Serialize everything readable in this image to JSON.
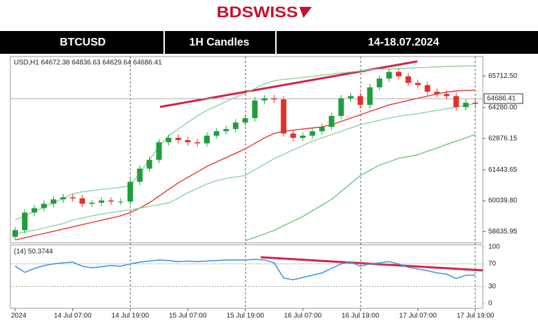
{
  "header": {
    "logo": "BDSWISS",
    "symbol": "BTCUSD",
    "timeframe": "1H Candles",
    "dates": "14-18.07.2024"
  },
  "chart_data": [
    {
      "type": "candlestick",
      "title": "USD,H1 64672.38 64836.63 64629.64 64686.41",
      "categories": [
        "2024",
        null,
        null,
        null,
        null,
        null,
        "14 Jul 07:00",
        null,
        null,
        null,
        null,
        null,
        "14 Jul 19:00",
        null,
        null,
        null,
        null,
        null,
        "15 Jul 07:00",
        null,
        null,
        null,
        null,
        null,
        "15 Jul 19:00",
        null,
        null,
        null,
        null,
        null,
        "16 Jul 07:00",
        null,
        null,
        null,
        null,
        null,
        "16 Jul 19:00",
        null,
        null,
        null,
        null,
        null,
        "17 Jul 07:00",
        null,
        null,
        null,
        null,
        null,
        "17 Jul 19:00"
      ],
      "open": [
        58400,
        58700,
        59500,
        59700,
        59900,
        60100,
        60200,
        60150,
        59900,
        59950,
        60050,
        60000,
        60000,
        60900,
        61500,
        61900,
        62700,
        62900,
        62800,
        62700,
        62650,
        63000,
        63200,
        63300,
        63600,
        63800,
        64600,
        64700,
        64650,
        63100,
        62900,
        63000,
        63200,
        63400,
        63900,
        64700,
        64800,
        64400,
        65200,
        65600,
        65900,
        65700,
        65400,
        65300,
        65000,
        64900,
        64800,
        64300,
        64500
      ],
      "high": [
        58850,
        59650,
        59850,
        60050,
        60250,
        60350,
        60350,
        60300,
        60050,
        60200,
        60200,
        60150,
        61050,
        61650,
        62050,
        62850,
        63050,
        63050,
        62950,
        62850,
        63150,
        63350,
        63450,
        63750,
        63950,
        64750,
        64850,
        64850,
        64800,
        63250,
        63150,
        63350,
        63550,
        64050,
        64850,
        64950,
        64950,
        65350,
        65750,
        66050,
        66050,
        65850,
        65550,
        65450,
        65150,
        65050,
        64950,
        64650,
        64650
      ],
      "low": [
        58250,
        58550,
        59350,
        59550,
        59750,
        59950,
        60000,
        59750,
        59750,
        59800,
        59850,
        59850,
        59850,
        60750,
        61350,
        61750,
        62550,
        62650,
        62550,
        62500,
        62500,
        62850,
        63050,
        63150,
        63450,
        63650,
        64450,
        64500,
        62950,
        62750,
        62750,
        62850,
        63050,
        63250,
        63750,
        64550,
        64250,
        64250,
        65050,
        65450,
        65550,
        65250,
        65150,
        64850,
        64750,
        64650,
        64150,
        64150,
        64300
      ],
      "close": [
        58700,
        59500,
        59700,
        59900,
        60100,
        60200,
        60150,
        59900,
        59950,
        60050,
        60000,
        60000,
        60900,
        61500,
        61900,
        62700,
        62900,
        62800,
        62700,
        62650,
        63000,
        63200,
        63300,
        63600,
        63800,
        64600,
        64700,
        64650,
        63100,
        62900,
        63000,
        63200,
        63400,
        63900,
        64700,
        64800,
        64400,
        65200,
        65600,
        65900,
        65700,
        65400,
        65300,
        65000,
        64900,
        64800,
        64300,
        64500,
        64450
      ],
      "up_color": "#1f9e3c",
      "down_color": "#e33129",
      "series": [
        {
          "color": "#e8312a",
          "values": [
            58250,
            58350,
            58450,
            58550,
            58650,
            58750,
            58850,
            58950,
            59050,
            59150,
            59250,
            59350,
            59500,
            59700,
            59950,
            60250,
            60550,
            60850,
            61100,
            61350,
            61600,
            61800,
            62000,
            62200,
            62400,
            62650,
            62900,
            63100,
            63200,
            63250,
            63300,
            63350,
            63400,
            63500,
            63650,
            63800,
            63950,
            64100,
            64250,
            64400,
            64500,
            64600,
            64700,
            64800,
            64900,
            64980,
            65030,
            65060,
            65070
          ]
        },
        {
          "color": "#8fd29e",
          "values": [
            59160,
            59350,
            59550,
            59750,
            59950,
            60150,
            60350,
            60450,
            60500,
            60550,
            60600,
            60650,
            60720,
            61300,
            61900,
            62500,
            63000,
            63300,
            63600,
            63900,
            64150,
            64350,
            64550,
            64750,
            64930,
            65150,
            65350,
            65500,
            65560,
            65600,
            65650,
            65700,
            65750,
            65800,
            65850,
            65900,
            65950,
            66000,
            66030,
            66030,
            66050,
            66070,
            66090,
            66110,
            66130,
            66150,
            66160,
            66170,
            66180
          ]
        },
        {
          "color": "#8fd29e",
          "values": [
            58540,
            58620,
            58700,
            58800,
            58900,
            59000,
            59160,
            59250,
            59350,
            59430,
            59500,
            59570,
            59630,
            59700,
            59780,
            59860,
            59940,
            60150,
            60400,
            60600,
            60800,
            60950,
            61050,
            61120,
            61190,
            61450,
            61700,
            61950,
            62150,
            62350,
            62550,
            62750,
            62900,
            63050,
            63200,
            63350,
            63500,
            63600,
            63700,
            63800,
            63880,
            63950,
            64000,
            64080,
            64150,
            64230,
            64300,
            64380,
            64470
          ]
        },
        {
          "color": "#6cc47f",
          "values": [
            null,
            null,
            null,
            null,
            null,
            null,
            null,
            null,
            null,
            null,
            null,
            null,
            null,
            null,
            null,
            null,
            null,
            null,
            null,
            null,
            null,
            null,
            null,
            null,
            58220,
            58370,
            58530,
            58690,
            58900,
            59110,
            59320,
            59580,
            59840,
            60100,
            60460,
            60820,
            61190,
            61420,
            61660,
            61810,
            61970,
            62050,
            62130,
            62290,
            62440,
            62600,
            62750,
            62900,
            63060
          ]
        }
      ],
      "last_price": 64686.41,
      "ylim": [
        58125,
        66600
      ],
      "yticks": [
        58635.95,
        {
          "value": 60039.8,
          "label": "60039.80"
        },
        61443.65,
        62876.15,
        {
          "value": 64280,
          "label": "64280.00"
        },
        {
          "value": 65712.5,
          "label": "65712.50"
        }
      ]
    },
    {
      "type": "line",
      "title": "(14) 50.3744",
      "series": [
        {
          "color": "#3d96e6",
          "values": [
            66,
            55,
            62,
            67,
            70,
            72,
            73,
            66,
            63,
            65,
            67,
            66,
            70,
            73,
            75,
            77,
            76,
            74,
            75,
            74,
            75,
            76,
            77,
            77,
            77,
            78,
            77,
            72,
            45,
            42,
            46,
            50,
            54,
            62,
            70,
            73,
            66,
            70,
            72,
            74,
            70,
            64,
            61,
            58,
            54,
            52,
            44,
            50,
            50
          ]
        }
      ],
      "ylim": [
        0,
        100
      ],
      "yticks": [
        0,
        30,
        70,
        100
      ]
    }
  ]
}
